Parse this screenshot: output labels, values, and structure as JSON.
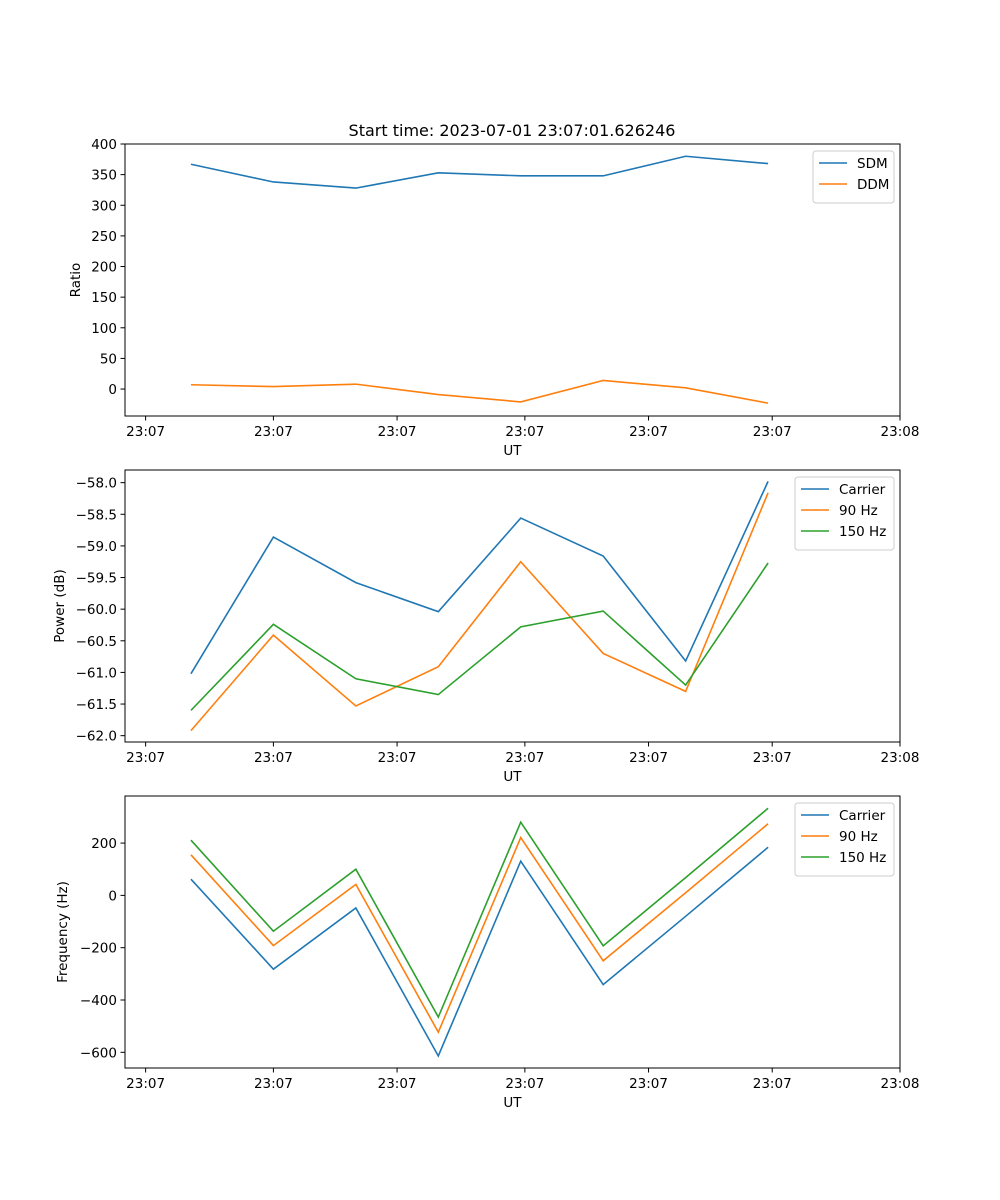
{
  "figure": {
    "title": "Start time: 2023-07-01 23:07:01.626246"
  },
  "chart_data": [
    {
      "type": "line",
      "title": "Start time: 2023-07-01 23:07:01.626246",
      "xlabel": "UT",
      "ylabel": "Ratio",
      "x": [
        1,
        2,
        3,
        4,
        5,
        6,
        7,
        8
      ],
      "xlim": [
        0.2,
        9.6
      ],
      "xticks": [
        0.45,
        2.0,
        3.5,
        5.05,
        6.55,
        8.05,
        9.6
      ],
      "xtick_labels": [
        "23:07",
        "23:07",
        "23:07",
        "23:07",
        "23:07",
        "23:07",
        "23:08"
      ],
      "ylim": [
        -44,
        400
      ],
      "yticks": [
        0,
        50,
        100,
        150,
        200,
        250,
        300,
        350,
        400
      ],
      "ytick_labels": [
        "0",
        "50",
        "100",
        "150",
        "200",
        "250",
        "300",
        "350",
        "400"
      ],
      "legend": "top-right",
      "series": [
        {
          "name": "SDM",
          "color": "#1f77b4",
          "values": [
            367,
            338,
            328,
            353,
            348,
            348,
            380,
            368
          ]
        },
        {
          "name": "DDM",
          "color": "#ff7f0e",
          "values": [
            7,
            4,
            8,
            -9,
            -21,
            14,
            2,
            -23
          ]
        }
      ]
    },
    {
      "type": "line",
      "title": "",
      "xlabel": "UT",
      "ylabel": "Power (dB)",
      "x": [
        1,
        2,
        3,
        4,
        5,
        6,
        7,
        8
      ],
      "xlim": [
        0.2,
        9.6
      ],
      "xticks": [
        0.45,
        2.0,
        3.5,
        5.05,
        6.55,
        8.05,
        9.6
      ],
      "xtick_labels": [
        "23:07",
        "23:07",
        "23:07",
        "23:07",
        "23:07",
        "23:07",
        "23:08"
      ],
      "ylim": [
        -62.1,
        -57.8
      ],
      "yticks": [
        -62.0,
        -61.5,
        -61.0,
        -60.5,
        -60.0,
        -59.5,
        -59.0,
        -58.5,
        -58.0
      ],
      "ytick_labels": [
        "−62.0",
        "−61.5",
        "−61.0",
        "−60.5",
        "−60.0",
        "−59.5",
        "−59.0",
        "−58.5",
        "−58.0"
      ],
      "legend": "top-right",
      "series": [
        {
          "name": "Carrier",
          "color": "#1f77b4",
          "values": [
            -61.02,
            -58.86,
            -59.58,
            -60.04,
            -58.56,
            -59.16,
            -60.82,
            -57.98
          ]
        },
        {
          "name": "90 Hz",
          "color": "#ff7f0e",
          "values": [
            -61.92,
            -60.41,
            -61.53,
            -60.91,
            -59.25,
            -60.7,
            -61.3,
            -58.16
          ]
        },
        {
          "name": "150 Hz",
          "color": "#2ca02c",
          "values": [
            -61.6,
            -60.24,
            -61.1,
            -61.35,
            -60.28,
            -60.03,
            -61.2,
            -59.27
          ]
        }
      ]
    },
    {
      "type": "line",
      "title": "",
      "xlabel": "UT",
      "ylabel": "Frequency (Hz)",
      "x": [
        1,
        2,
        3,
        4,
        5,
        6,
        7,
        8
      ],
      "xlim": [
        0.2,
        9.6
      ],
      "xticks": [
        0.45,
        2.0,
        3.5,
        5.05,
        6.55,
        8.05,
        9.6
      ],
      "xtick_labels": [
        "23:07",
        "23:07",
        "23:07",
        "23:07",
        "23:07",
        "23:07",
        "23:08"
      ],
      "ylim": [
        -660,
        380
      ],
      "yticks": [
        -600,
        -400,
        -200,
        0,
        200
      ],
      "ytick_labels": [
        "−600",
        "−400",
        "−200",
        "0",
        "200"
      ],
      "legend": "top-right",
      "series": [
        {
          "name": "Carrier",
          "color": "#1f77b4",
          "values": [
            62,
            -282,
            -48,
            -614,
            131,
            -341,
            -80,
            184
          ]
        },
        {
          "name": "90 Hz",
          "color": "#ff7f0e",
          "values": [
            155,
            -192,
            42,
            -523,
            221,
            -250,
            10,
            274
          ]
        },
        {
          "name": "150 Hz",
          "color": "#2ca02c",
          "values": [
            211,
            -137,
            100,
            -465,
            280,
            -193,
            68,
            333
          ]
        }
      ]
    }
  ]
}
